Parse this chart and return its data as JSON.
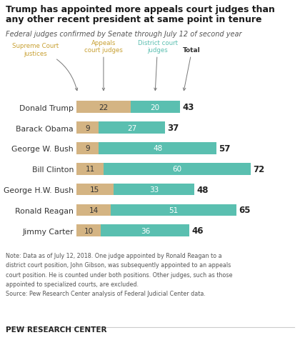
{
  "title_line1": "Trump has appointed more appeals court judges than",
  "title_line2": "any other recent president at same point in tenure",
  "subtitle": "Federal judges confirmed by Senate through July 12 of second year",
  "presidents": [
    "Donald Trump",
    "Barack Obama",
    "George W. Bush",
    "Bill Clinton",
    "George H.W. Bush",
    "Ronald Reagan",
    "Jimmy Carter"
  ],
  "appeals": [
    22,
    9,
    9,
    11,
    15,
    14,
    10
  ],
  "district": [
    20,
    27,
    48,
    60,
    33,
    51,
    36
  ],
  "totals": [
    43,
    37,
    57,
    72,
    48,
    65,
    46
  ],
  "appeals_color": "#d4b483",
  "district_color": "#5abfb0",
  "sc_label_color": "#c8a032",
  "appeals_label_color": "#c8a032",
  "district_label_color": "#5abfb0",
  "total_label_color": "#333333",
  "note_line1": "Note: Data as of July 12, 2018. One judge appointed by Ronald Reagan to a",
  "note_line2": "district court position, John Gibson, was subsequently appointed to an appeals",
  "note_line3": "court position. He is counted under both positions. Other judges, such as those",
  "note_line4": "appointed to specialized courts, are excluded.",
  "source": "Source: Pew Research Center analysis of Federal Judicial Center data.",
  "branding": "PEW RESEARCH CENTER",
  "xlim": 80,
  "bar_height": 0.58
}
